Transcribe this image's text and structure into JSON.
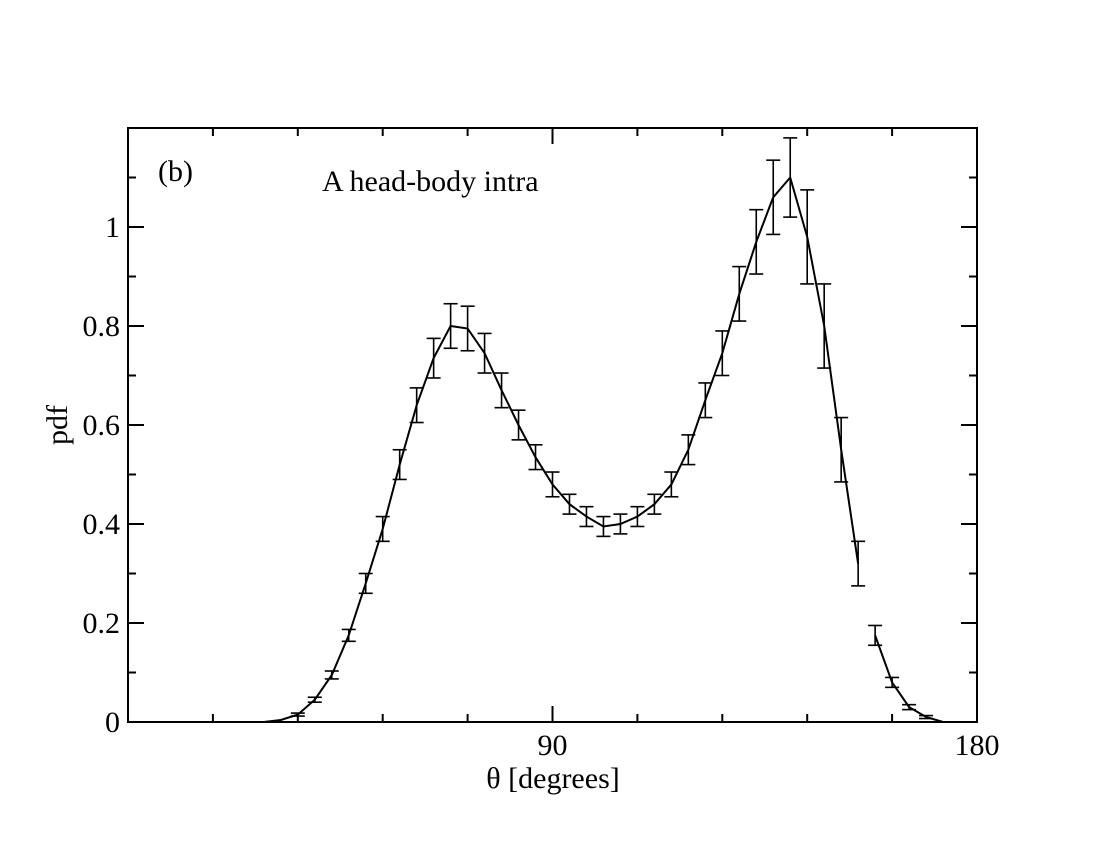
{
  "chart_data": {
    "type": "line",
    "panel_label": "(b)",
    "title": "A head-body intra",
    "xlabel": "θ [degrees]",
    "ylabel": "pdf",
    "xlim": [
      0,
      180
    ],
    "ylim": [
      0,
      1.2
    ],
    "x_ticks": [
      90,
      180
    ],
    "x_tick_labels": [
      "90",
      "180"
    ],
    "y_ticks": [
      0,
      0.2,
      0.4,
      0.6,
      0.8,
      1.0
    ],
    "y_tick_labels": [
      "0",
      "0.2",
      "0.4",
      "0.6",
      "0.8",
      "1"
    ],
    "x_minor_step": 18,
    "y_minor_step": 0.1,
    "grid": false,
    "line_color": "#000000",
    "series": [
      {
        "x": [
          28.8,
          32.4,
          36.0,
          39.6,
          43.2,
          46.8,
          50.4,
          54.0,
          57.6,
          61.2,
          64.8,
          68.4,
          72.0,
          75.6,
          79.2,
          82.8,
          86.4,
          90.0,
          93.6,
          97.2,
          100.8,
          104.4,
          108.0,
          111.6,
          115.2,
          118.8,
          122.4,
          126.0,
          129.6,
          133.2,
          136.8,
          140.4,
          144.0,
          147.6,
          151.2,
          154.8
        ],
        "y": [
          0.0,
          0.004,
          0.015,
          0.045,
          0.095,
          0.175,
          0.28,
          0.39,
          0.52,
          0.64,
          0.735,
          0.8,
          0.795,
          0.745,
          0.67,
          0.6,
          0.535,
          0.48,
          0.44,
          0.415,
          0.395,
          0.4,
          0.415,
          0.44,
          0.48,
          0.55,
          0.65,
          0.745,
          0.865,
          0.97,
          1.06,
          1.1,
          0.98,
          0.8,
          0.55,
          0.32
        ],
        "err": [
          0,
          0,
          0.003,
          0.005,
          0.008,
          0.012,
          0.02,
          0.025,
          0.03,
          0.035,
          0.04,
          0.045,
          0.045,
          0.04,
          0.035,
          0.03,
          0.025,
          0.025,
          0.02,
          0.02,
          0.02,
          0.02,
          0.02,
          0.02,
          0.025,
          0.03,
          0.035,
          0.045,
          0.055,
          0.065,
          0.075,
          0.08,
          0.095,
          0.085,
          0.065,
          0.045
        ]
      },
      {
        "x": [
          158.4,
          162.0,
          165.6,
          169.2,
          172.8
        ],
        "y": [
          0.175,
          0.08,
          0.03,
          0.01,
          0.0
        ],
        "err": [
          0.02,
          0.01,
          0.005,
          0.003,
          0
        ]
      }
    ]
  }
}
